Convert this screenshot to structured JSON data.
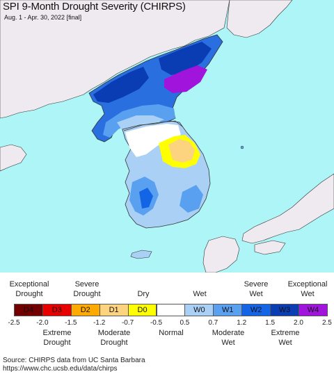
{
  "title": "SPI 9-Month Drought Severity (CHIRPS)",
  "subtitle": "Aug. 1 - Apr. 30, 2022 [final]",
  "legend": {
    "top_labels": [
      {
        "text": "Exceptional\nDrought"
      },
      {
        "text": "Severe\nDrought"
      },
      {
        "text": "Dry"
      },
      {
        "text": "Wet"
      },
      {
        "text": "Severe\nWet"
      },
      {
        "text": "Exceptional\nWet"
      }
    ],
    "categories": [
      {
        "code": "D4",
        "color": "#730000"
      },
      {
        "code": "D3",
        "color": "#e60000"
      },
      {
        "code": "D2",
        "color": "#ffaa00"
      },
      {
        "code": "D1",
        "color": "#fcd37f"
      },
      {
        "code": "D0",
        "color": "#ffff00"
      },
      {
        "code": "",
        "color": "#ffffff"
      },
      {
        "code": "W0",
        "color": "#aad1f5"
      },
      {
        "code": "W1",
        "color": "#5aa0f0"
      },
      {
        "code": "W2",
        "color": "#1464e6"
      },
      {
        "code": "W3",
        "color": "#0a3cb4"
      },
      {
        "code": "W4",
        "color": "#a014dc"
      }
    ],
    "ticks": [
      "-2.5",
      "-2.0",
      "-1.5",
      "-1.2",
      "-0.7",
      "-0.5",
      "0.5",
      "0.7",
      "1.2",
      "1.5",
      "2.0",
      "2.5"
    ],
    "bottom_labels": [
      {
        "text": "Extreme\nDrought"
      },
      {
        "text": "Moderate\nDrought"
      },
      {
        "text": "Normal"
      },
      {
        "text": "Moderate\nWet"
      },
      {
        "text": "Extreme\nWet"
      }
    ]
  },
  "source_line1": "Source: CHIRPS data from UC Santa Barbara",
  "source_line2": "https://www.chc.ucsb.edu/data/chirps",
  "map_colors": {
    "water": "#aef5f7",
    "land_other": "#efeaf0",
    "border": "#333333"
  }
}
